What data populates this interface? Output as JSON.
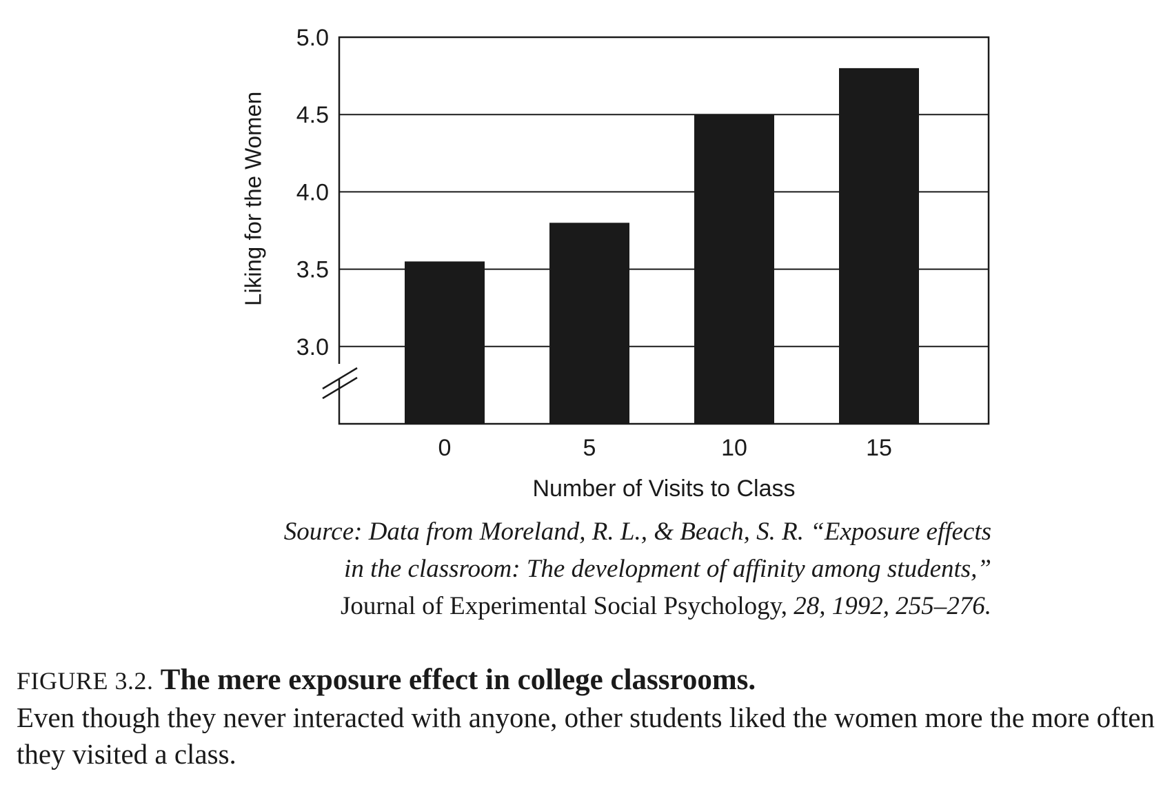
{
  "chart_data": {
    "type": "bar",
    "categories": [
      "0",
      "5",
      "10",
      "15"
    ],
    "values": [
      3.55,
      3.8,
      4.5,
      4.8
    ],
    "title": "",
    "xlabel": "Number of Visits to Class",
    "ylabel": "Liking for the Women",
    "ylim": [
      2.5,
      5.0
    ],
    "yticks": [
      "5.0",
      "4.5",
      "4.0",
      "3.5",
      "3.0"
    ],
    "ytick_values": [
      5.0,
      4.5,
      4.0,
      3.5,
      3.0
    ],
    "grid": true,
    "axis_break": true,
    "bar_color": "#1a1a1a"
  },
  "source": {
    "line1": "Source: Data from Moreland, R. L., & Beach, S. R. “Exposure effects",
    "line2": "in the classroom: The development of affinity among students,”",
    "journal": "Journal of Experimental Social Psychology,",
    "citation": " 28, 1992, 255–276."
  },
  "caption": {
    "label": "FIGURE 3.2.",
    "title": "The mere exposure effect in college classrooms.",
    "body": "Even though they never interacted with anyone, other students liked the women more the more often they visited a class."
  }
}
